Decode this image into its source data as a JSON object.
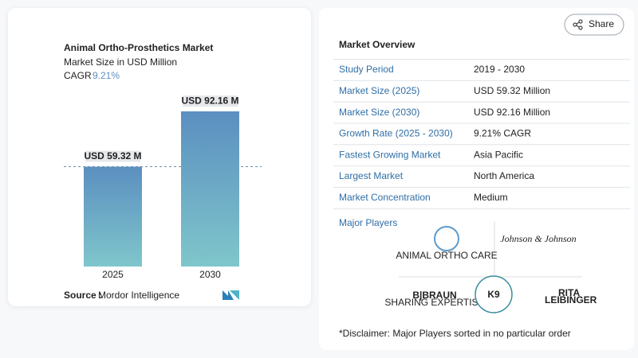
{
  "chart_data": {
    "type": "bar",
    "title": "Animal Ortho-Prosthetics Market",
    "subtitle": "Market Size in USD Million",
    "cagr_label": "CAGR",
    "cagr_value": "9.21%",
    "categories": [
      "2025",
      "2030"
    ],
    "values": [
      59.32,
      92.16
    ],
    "value_labels": [
      "USD 59.32 M",
      "USD 92.16 M"
    ],
    "color": "#5b8fc0",
    "source_label": "Source :",
    "source": "Mordor Intelligence"
  },
  "share": "Share",
  "overview": {
    "title": "Market Overview",
    "rows": [
      [
        "Study Period",
        "2019 - 2030"
      ],
      [
        "Market Size (2025)",
        "USD 59.32 Million"
      ],
      [
        "Market Size (2030)",
        "USD 92.16 Million"
      ],
      [
        "Growth Rate (2025 - 2030)",
        "9.21% CAGR"
      ],
      [
        "Fastest Growing Market",
        "Asia Pacific"
      ],
      [
        "Largest Market",
        "North America"
      ],
      [
        "Market Concentration",
        "Medium"
      ]
    ]
  },
  "players": {
    "title": "Major Players",
    "animal_ortho_care": "ANIMAL ORTHO CARE",
    "jnj": "Johnson & Johnson",
    "braun": "B|BRAUN",
    "braun_tag": "SHARING EXPERTISE",
    "k9": "K9",
    "rita": "RITA",
    "leibinger": "LEIBINGER"
  },
  "disclaimer": "*Disclaimer: Major Players sorted in no particular order"
}
